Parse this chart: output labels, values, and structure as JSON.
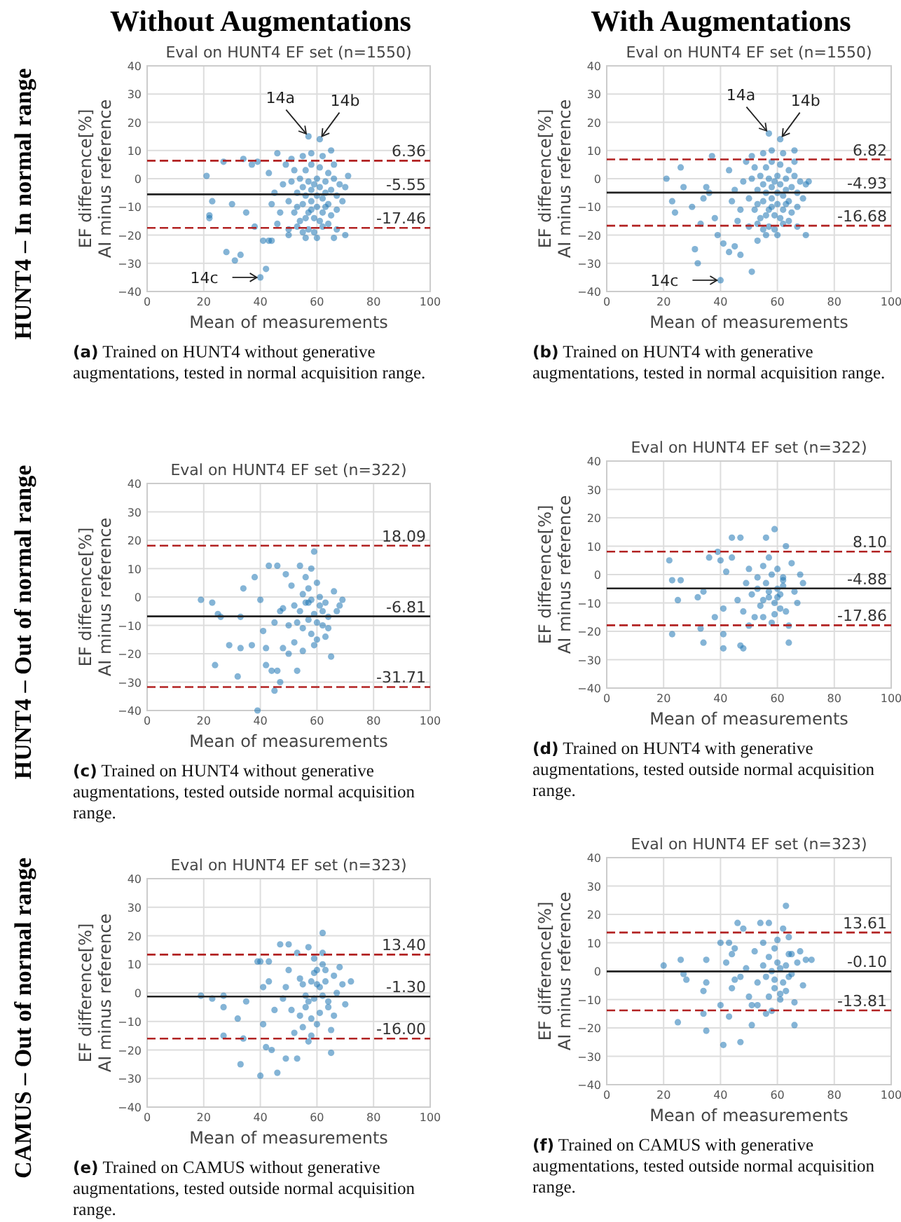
{
  "chart_data": [
    {
      "type": "scatter",
      "title": "Eval on HUNT4 EF set (n=1550)",
      "xlabel": "Mean of measurements",
      "ylabel": "EF difference[%]\nAI minus reference",
      "xlim": [
        0,
        100
      ],
      "ylim": [
        -40,
        40
      ],
      "xticks": [
        0,
        20,
        40,
        60,
        80,
        100
      ],
      "yticks": [
        {
          "value": -40,
          "label": "−40"
        },
        {
          "value": -30,
          "label": "−30"
        },
        {
          "value": -20,
          "label": "−20"
        },
        {
          "value": -10,
          "label": "−10"
        },
        0,
        10,
        20,
        30,
        40
      ],
      "grid": true,
      "marker": "circle",
      "series": [
        {
          "type": "scatter",
          "color": "#1f77b4",
          "x": [
            21,
            22,
            23,
            22,
            27,
            28,
            30,
            31,
            33,
            34,
            35,
            37,
            38,
            39,
            40,
            42,
            41,
            43,
            44,
            46,
            57,
            61,
            65,
            70,
            71,
            66,
            50,
            48,
            50,
            52,
            53,
            54,
            54,
            55,
            55,
            56,
            56,
            57,
            57,
            58,
            58,
            58,
            59,
            59,
            60,
            60,
            60,
            61,
            61,
            62,
            62,
            63,
            63,
            64,
            64,
            65,
            66,
            67,
            68,
            69,
            70,
            52,
            53,
            55,
            57,
            59,
            62,
            64,
            49,
            51,
            55,
            58,
            62,
            66,
            47,
            45,
            44,
            43,
            46,
            50,
            56,
            60,
            67,
            51,
            53,
            56,
            58,
            61,
            63,
            65,
            67
          ],
          "values": [
            1,
            -14,
            -8,
            -13,
            6,
            -26,
            -9,
            -29,
            -27,
            7,
            -12,
            5,
            -17,
            6,
            -35,
            -32,
            -22,
            -22,
            -22,
            9,
            15,
            14,
            10,
            -20,
            1,
            -21,
            -20,
            -2,
            -8,
            -12,
            -5,
            0,
            -15,
            -3,
            -9,
            -6,
            3,
            -1,
            -12,
            -4,
            -8,
            5,
            -2,
            -14,
            -6,
            0,
            -10,
            -3,
            4,
            -7,
            -12,
            -1,
            -5,
            2,
            -9,
            -4,
            0,
            -6,
            -2,
            -8,
            -3,
            3,
            -17,
            -19,
            -18,
            -19,
            -17,
            -16,
            5,
            7,
            8,
            9,
            8,
            5,
            -12,
            -5,
            -9,
            2,
            -16,
            -18,
            -21,
            -21,
            -18,
            -1,
            -10,
            -14,
            -11,
            -15,
            -10,
            -13,
            -11
          ]
        }
      ],
      "ref_lines": [
        {
          "axis": "y",
          "value": 6.36,
          "label": "6.36",
          "color": "#b22222",
          "line_style": "dashed"
        },
        {
          "axis": "y",
          "value": -5.55,
          "label": "-5.55",
          "color": "#222222",
          "line_style": "solid"
        },
        {
          "axis": "y",
          "value": -17.46,
          "label": "-17.46",
          "color": "#b22222",
          "line_style": "dashed"
        }
      ],
      "annotations": [
        "Without Augmentations",
        "HUNT4 – In normal range",
        "(a) Trained on HUNT4 without generative augmentations, tested in normal acquisition range.",
        {
          "text": "14a",
          "x": 57,
          "y": 15
        },
        {
          "text": "14b",
          "x": 61,
          "y": 14
        },
        {
          "text": "14c",
          "x": 40,
          "y": -35
        }
      ]
    },
    {
      "type": "scatter",
      "title": "Eval on HUNT4 EF set (n=1550)",
      "xlabel": "Mean of measurements",
      "ylabel": "EF difference[%]\nAI minus reference",
      "xlim": [
        0,
        100
      ],
      "ylim": [
        -40,
        40
      ],
      "xticks": [
        0,
        20,
        40,
        60,
        80,
        100
      ],
      "yticks": [
        {
          "value": -40,
          "label": "−40"
        },
        {
          "value": -30,
          "label": "−30"
        },
        {
          "value": -20,
          "label": "−20"
        },
        {
          "value": -10,
          "label": "−10"
        },
        0,
        10,
        20,
        30,
        40
      ],
      "grid": true,
      "marker": "circle",
      "series": [
        {
          "type": "scatter",
          "color": "#1f77b4",
          "x": [
            21,
            23,
            24,
            26,
            27,
            30,
            31,
            32,
            34,
            35,
            37,
            38,
            39,
            40,
            41,
            43,
            45,
            47,
            51,
            53,
            57,
            61,
            66,
            70,
            71,
            33,
            36,
            48,
            50,
            52,
            53,
            54,
            54,
            55,
            55,
            56,
            56,
            57,
            57,
            58,
            58,
            58,
            59,
            59,
            60,
            60,
            60,
            61,
            61,
            62,
            62,
            63,
            63,
            64,
            64,
            65,
            66,
            67,
            68,
            69,
            70,
            52,
            53,
            55,
            57,
            59,
            62,
            64,
            49,
            51,
            55,
            58,
            62,
            66,
            47,
            45,
            44,
            43,
            46,
            50,
            56,
            60,
            67,
            51,
            53,
            56,
            58,
            61,
            63,
            65,
            67
          ],
          "values": [
            0,
            -8,
            -12,
            4,
            -3,
            -10,
            -25,
            -30,
            -7,
            -3,
            8,
            -14,
            -20,
            -36,
            -23,
            -26,
            -24,
            -27,
            -33,
            -22,
            16,
            14,
            10,
            -20,
            -1,
            -16,
            -5,
            -1,
            -7,
            -11,
            -4,
            1,
            -14,
            -2,
            -8,
            -5,
            4,
            0,
            -11,
            -3,
            -7,
            6,
            -1,
            -13,
            -5,
            1,
            -9,
            -2,
            5,
            -6,
            -11,
            0,
            -4,
            3,
            -8,
            -3,
            1,
            -5,
            -1,
            -7,
            -2,
            4,
            -16,
            -18,
            -17,
            -18,
            -16,
            -15,
            6,
            8,
            9,
            10,
            9,
            6,
            -11,
            -4,
            -8,
            3,
            -15,
            -17,
            -20,
            -20,
            -17,
            0,
            -9,
            -13,
            -10,
            -14,
            -9,
            -12,
            -10
          ]
        }
      ],
      "ref_lines": [
        {
          "axis": "y",
          "value": 6.82,
          "label": "6.82",
          "color": "#b22222",
          "line_style": "dashed"
        },
        {
          "axis": "y",
          "value": -4.93,
          "label": "-4.93",
          "color": "#222222",
          "line_style": "solid"
        },
        {
          "axis": "y",
          "value": -16.68,
          "label": "-16.68",
          "color": "#b22222",
          "line_style": "dashed"
        }
      ],
      "annotations": [
        "With Augmentations",
        "(b) Trained on HUNT4 with generative augmentations, tested in normal acquisition range.",
        {
          "text": "14a",
          "x": 57,
          "y": 16
        },
        {
          "text": "14b",
          "x": 61,
          "y": 14
        },
        {
          "text": "14c",
          "x": 40,
          "y": -36
        }
      ]
    },
    {
      "type": "scatter",
      "title": "Eval on HUNT4 EF set (n=322)",
      "xlabel": "Mean of measurements",
      "ylabel": "EF difference[%]\nAI minus reference",
      "xlim": [
        0,
        100
      ],
      "ylim": [
        -40,
        40
      ],
      "xticks": [
        0,
        20,
        40,
        60,
        80,
        100
      ],
      "yticks": [
        {
          "value": -40,
          "label": "−40"
        },
        {
          "value": -30,
          "label": "−30"
        },
        {
          "value": -20,
          "label": "−20"
        },
        {
          "value": -10,
          "label": "−10"
        },
        0,
        10,
        20,
        30,
        40
      ],
      "grid": true,
      "marker": "circle",
      "series": [
        {
          "type": "scatter",
          "color": "#1f77b4",
          "x": [
            19,
            23,
            24,
            25,
            26,
            29,
            32,
            33,
            33,
            34,
            37,
            38,
            39,
            40,
            41,
            42,
            42,
            43,
            44,
            45,
            46,
            46,
            47,
            47,
            48,
            49,
            50,
            51,
            52,
            53,
            54,
            55,
            56,
            57,
            58,
            59,
            60,
            61,
            62,
            63,
            64,
            65,
            66,
            67,
            68,
            69,
            52,
            53,
            54,
            55,
            56,
            57,
            58,
            59,
            60,
            61,
            62,
            63,
            64,
            55,
            57,
            59,
            60,
            58,
            50,
            48,
            45
          ],
          "values": [
            -1,
            -2,
            -24,
            -6,
            -7,
            -17,
            -28,
            -18,
            -7,
            3,
            -17,
            7,
            -40,
            -1,
            -12,
            -18,
            -24,
            11,
            -26,
            -33,
            -26,
            11,
            -5,
            -30,
            -18,
            8,
            -20,
            4,
            -16,
            -26,
            11,
            -19,
            7,
            -2,
            10,
            16,
            5,
            -3,
            -10,
            -14,
            -7,
            -21,
            2,
            -5,
            -3,
            -1,
            -3,
            -9,
            -5,
            -11,
            -2,
            -8,
            -13,
            -6,
            -9,
            0,
            -5,
            -2,
            -11,
            1,
            3,
            -17,
            -15,
            -1,
            -10,
            -4,
            -9
          ]
        }
      ],
      "ref_lines": [
        {
          "axis": "y",
          "value": 18.09,
          "label": "18.09",
          "color": "#b22222",
          "line_style": "dashed"
        },
        {
          "axis": "y",
          "value": -6.81,
          "label": "-6.81",
          "color": "#222222",
          "line_style": "solid"
        },
        {
          "axis": "y",
          "value": -31.71,
          "label": "-31.71",
          "color": "#b22222",
          "line_style": "dashed"
        }
      ],
      "annotations": [
        "HUNT4 – Out of normal range",
        "(c) Trained on HUNT4 without generative augmentations, tested outside normal acquisition range."
      ]
    },
    {
      "type": "scatter",
      "title": "Eval on HUNT4 EF set (n=322)",
      "xlabel": "Mean of measurements",
      "ylabel": "EF difference[%]\nAI minus reference",
      "xlim": [
        0,
        100
      ],
      "ylim": [
        -40,
        40
      ],
      "xticks": [
        0,
        20,
        40,
        60,
        80,
        100
      ],
      "yticks": [
        {
          "value": -40,
          "label": "−40"
        },
        {
          "value": -30,
          "label": "−30"
        },
        {
          "value": -20,
          "label": "−20"
        },
        {
          "value": -10,
          "label": "−10"
        },
        0,
        10,
        20,
        30,
        40
      ],
      "grid": true,
      "marker": "circle",
      "series": [
        {
          "type": "scatter",
          "color": "#1f77b4",
          "x": [
            22,
            23,
            23,
            25,
            26,
            32,
            33,
            34,
            34,
            36,
            38,
            39,
            40,
            41,
            41,
            41,
            42,
            44,
            44,
            46,
            47,
            47,
            48,
            48,
            49,
            50,
            50,
            51,
            52,
            53,
            54,
            55,
            56,
            57,
            58,
            59,
            60,
            61,
            62,
            63,
            64,
            64,
            65,
            66,
            67,
            68,
            69,
            53,
            55,
            56,
            57,
            58,
            59,
            60,
            61,
            62,
            63,
            57,
            59,
            55,
            60,
            62
          ],
          "values": [
            5,
            -2,
            -21,
            -9,
            -2,
            -8,
            -19,
            -6,
            -24,
            6,
            -15,
            8,
            5,
            -12,
            -21,
            -26,
            1,
            6,
            13,
            -9,
            13,
            -25,
            -26,
            -13,
            -3,
            -18,
            2,
            -7,
            -15,
            -1,
            -11,
            3,
            13,
            -8,
            -17,
            16,
            -5,
            -12,
            -2,
            10,
            -24,
            -18,
            4,
            -6,
            -10,
            0,
            -3,
            -5,
            -9,
            -3,
            -6,
            0,
            -10,
            2,
            -7,
            -4,
            -13,
            6,
            -14,
            -15,
            -8,
            -1
          ]
        }
      ],
      "ref_lines": [
        {
          "axis": "y",
          "value": 8.1,
          "label": "8.10",
          "color": "#b22222",
          "line_style": "dashed"
        },
        {
          "axis": "y",
          "value": -4.88,
          "label": "-4.88",
          "color": "#222222",
          "line_style": "solid"
        },
        {
          "axis": "y",
          "value": -17.86,
          "label": "-17.86",
          "color": "#b22222",
          "line_style": "dashed"
        }
      ],
      "annotations": [
        "(d) Trained on HUNT4 with generative augmentations, tested outside normal acquisition range."
      ]
    },
    {
      "type": "scatter",
      "title": "Eval on HUNT4 EF set (n=323)",
      "xlabel": "Mean of measurements",
      "ylabel": "EF difference[%]\nAI minus reference",
      "xlim": [
        0,
        100
      ],
      "ylim": [
        -40,
        40
      ],
      "xticks": [
        0,
        20,
        40,
        60,
        80,
        100
      ],
      "yticks": [
        {
          "value": -40,
          "label": "−40"
        },
        {
          "value": -30,
          "label": "−30"
        },
        {
          "value": -20,
          "label": "−20"
        },
        {
          "value": -10,
          "label": "−10"
        },
        0,
        10,
        20,
        30,
        40
      ],
      "grid": true,
      "marker": "circle",
      "series": [
        {
          "type": "scatter",
          "color": "#1f77b4",
          "x": [
            19,
            23,
            27,
            27,
            27,
            32,
            33,
            34,
            35,
            39,
            40,
            40,
            41,
            41,
            42,
            43,
            43,
            44,
            45,
            46,
            47,
            48,
            49,
            49,
            50,
            50,
            51,
            52,
            53,
            53,
            54,
            55,
            56,
            57,
            58,
            59,
            60,
            61,
            62,
            62,
            63,
            64,
            65,
            65,
            66,
            67,
            68,
            69,
            70,
            72,
            55,
            56,
            57,
            58,
            59,
            60,
            61,
            62,
            63,
            64,
            60,
            58,
            57,
            62,
            66,
            54,
            59
          ],
          "values": [
            -1,
            -2,
            -1,
            -15,
            -5,
            -9,
            -25,
            -16,
            -3,
            11,
            -29,
            11,
            2,
            -11,
            -19,
            11,
            4,
            -20,
            -6,
            -28,
            17,
            -2,
            -23,
            2,
            17,
            8,
            -6,
            -14,
            14,
            -23,
            5,
            -12,
            -5,
            16,
            -9,
            12,
            3,
            -7,
            21,
            14,
            8,
            -3,
            -21,
            -13,
            6,
            0,
            9,
            3,
            -4,
            4,
            3,
            -1,
            -3,
            4,
            -2,
            8,
            2,
            -1,
            4,
            -5,
            -11,
            -15,
            -17,
            10,
            -8,
            -8,
            7
          ]
        }
      ],
      "ref_lines": [
        {
          "axis": "y",
          "value": 13.4,
          "label": "13.40",
          "color": "#b22222",
          "line_style": "dashed"
        },
        {
          "axis": "y",
          "value": -1.3,
          "label": "-1.30",
          "color": "#222222",
          "line_style": "solid"
        },
        {
          "axis": "y",
          "value": -16,
          "label": "-16.00",
          "color": "#b22222",
          "line_style": "dashed"
        }
      ],
      "annotations": [
        "CAMUS – Out of normal range",
        "(e) Trained on CAMUS without generative augmentations, tested outside normal acquisition range."
      ]
    },
    {
      "type": "scatter",
      "title": "Eval on HUNT4 EF set (n=323)",
      "xlabel": "Mean of measurements",
      "ylabel": "EF difference[%]\nAI minus reference",
      "xlim": [
        0,
        100
      ],
      "ylim": [
        -40,
        40
      ],
      "xticks": [
        0,
        20,
        40,
        60,
        80,
        100
      ],
      "yticks": [
        {
          "value": -40,
          "label": "−40"
        },
        {
          "value": -30,
          "label": "−30"
        },
        {
          "value": -20,
          "label": "−20"
        },
        {
          "value": -10,
          "label": "−10"
        },
        0,
        10,
        20,
        30,
        40
      ],
      "grid": true,
      "marker": "circle",
      "series": [
        {
          "type": "scatter",
          "color": "#1f77b4",
          "x": [
            20,
            25,
            26,
            27,
            28,
            34,
            34,
            35,
            35,
            35,
            40,
            40,
            41,
            42,
            43,
            43,
            44,
            44,
            45,
            45,
            46,
            47,
            47,
            48,
            49,
            50,
            51,
            51,
            52,
            53,
            54,
            55,
            56,
            57,
            58,
            59,
            60,
            61,
            62,
            63,
            64,
            65,
            66,
            66,
            67,
            68,
            69,
            70,
            72,
            55,
            56,
            57,
            58,
            59,
            60,
            61,
            62,
            63,
            64,
            65,
            59,
            61,
            63,
            57,
            53,
            64
          ],
          "values": [
            2,
            -18,
            4,
            -1,
            -3,
            -7,
            -15,
            -4,
            4,
            -21,
            10,
            -12,
            -26,
            3,
            10,
            -16,
            6,
            -6,
            8,
            -3,
            17,
            -25,
            -2,
            15,
            1,
            -9,
            -19,
            -12,
            7,
            -4,
            17,
            10,
            -15,
            17,
            -14,
            -3,
            11,
            -8,
            15,
            23,
            6,
            -1,
            -19,
            -11,
            3,
            7,
            -5,
            4,
            4,
            2,
            -2,
            5,
            0,
            -6,
            3,
            1,
            -4,
            2,
            -2,
            6,
            8,
            -10,
            -7,
            -9,
            -12,
            12
          ]
        }
      ],
      "ref_lines": [
        {
          "axis": "y",
          "value": 13.61,
          "label": "13.61",
          "color": "#b22222",
          "line_style": "dashed"
        },
        {
          "axis": "y",
          "value": -0.1,
          "label": "-0.10",
          "color": "#222222",
          "line_style": "solid"
        },
        {
          "axis": "y",
          "value": -13.81,
          "label": "-13.81",
          "color": "#b22222",
          "line_style": "dashed"
        }
      ],
      "annotations": [
        "(f) Trained on CAMUS with generative augmentations, tested outside normal acquisition range."
      ]
    }
  ]
}
